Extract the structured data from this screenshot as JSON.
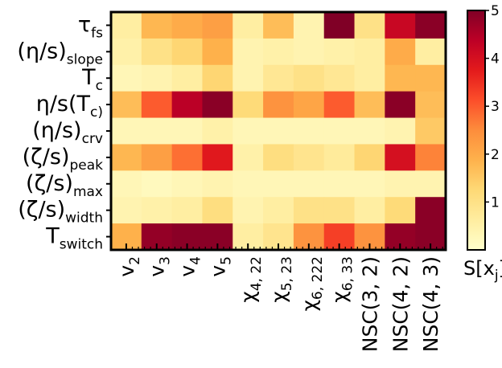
{
  "chart_data": {
    "type": "heatmap",
    "rows": [
      "τ_fs",
      "(η/s)_slope",
      "T_c",
      "η/s(T_c)",
      "(η/s)_crv",
      "(ζ/s)_peak",
      "(ζ/s)_max",
      "(ζ/s)_width",
      "T_switch"
    ],
    "columns": [
      "v_2",
      "v_3",
      "v_4",
      "v_5",
      "χ_{4, 22}",
      "χ_{5, 23}",
      "χ_{6, 222}",
      "χ_{6, 33}",
      "NSC(3, 2)",
      "NSC(4, 2)",
      "NSC(4, 3)"
    ],
    "values": [
      [
        0.6,
        1.8,
        2.0,
        2.2,
        0.6,
        1.7,
        0.4,
        5.0,
        1.0,
        4.2,
        4.9
      ],
      [
        0.5,
        1.0,
        1.3,
        1.9,
        0.4,
        0.5,
        0.4,
        0.5,
        0.6,
        2.0,
        0.6
      ],
      [
        0.3,
        0.4,
        0.6,
        1.3,
        0.4,
        0.8,
        1.0,
        0.8,
        0.6,
        1.8,
        1.8
      ],
      [
        1.7,
        3.0,
        4.4,
        4.9,
        1.2,
        2.4,
        2.1,
        3.0,
        1.7,
        4.9,
        1.7
      ],
      [
        0.3,
        0.3,
        0.3,
        0.5,
        0.3,
        0.3,
        0.3,
        0.3,
        0.3,
        0.4,
        1.5
      ],
      [
        1.8,
        2.2,
        2.8,
        3.8,
        0.5,
        1.1,
        0.9,
        0.7,
        1.3,
        4.0,
        2.6
      ],
      [
        0.3,
        0.2,
        0.3,
        0.4,
        0.3,
        0.3,
        0.3,
        0.3,
        0.3,
        0.4,
        0.4
      ],
      [
        0.4,
        0.5,
        0.6,
        1.1,
        0.4,
        0.6,
        1.0,
        1.0,
        0.6,
        1.2,
        4.9
      ],
      [
        1.9,
        4.8,
        4.9,
        4.9,
        0.6,
        0.9,
        2.4,
        3.3,
        2.4,
        4.8,
        4.9
      ]
    ],
    "vmin": 0,
    "vmax": 5,
    "colormap": "YlOrRd",
    "colorbar": {
      "ticks": [
        "1",
        "2",
        "3",
        "4",
        "5"
      ],
      "label": "S[x_j]"
    }
  }
}
